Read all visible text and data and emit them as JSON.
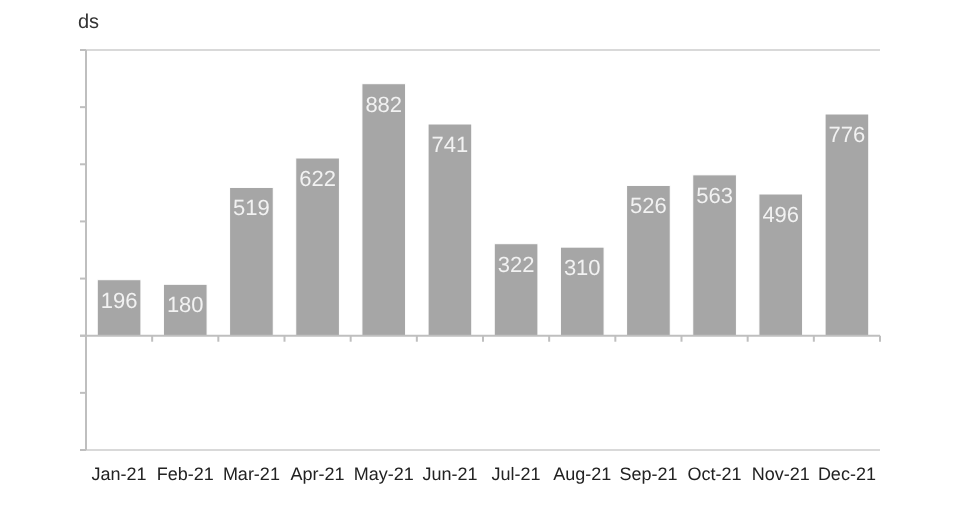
{
  "chart_data": {
    "type": "bar",
    "ylabel": "ds",
    "categories": [
      "Jan-21",
      "Feb-21",
      "Mar-21",
      "Apr-21",
      "May-21",
      "Jun-21",
      "Jul-21",
      "Aug-21",
      "Sep-21",
      "Oct-21",
      "Nov-21",
      "Dec-21"
    ],
    "values": [
      196,
      180,
      519,
      622,
      882,
      741,
      322,
      310,
      526,
      563,
      496,
      776
    ],
    "color": "#a6a6a6",
    "data_labels": true,
    "ylim": [
      -400,
      1000
    ],
    "yticks": [
      {
        "value": -400,
        "label": null
      },
      {
        "value": -200,
        "label": null
      },
      {
        "value": 0,
        "label": null
      },
      {
        "value": 200,
        "label": null
      },
      {
        "value": 400,
        "label": null
      },
      {
        "value": 600,
        "label": null
      },
      {
        "value": 800,
        "label": null
      },
      {
        "value": 1000,
        "label": null
      }
    ],
    "tick_labels": "x",
    "grid": false
  }
}
